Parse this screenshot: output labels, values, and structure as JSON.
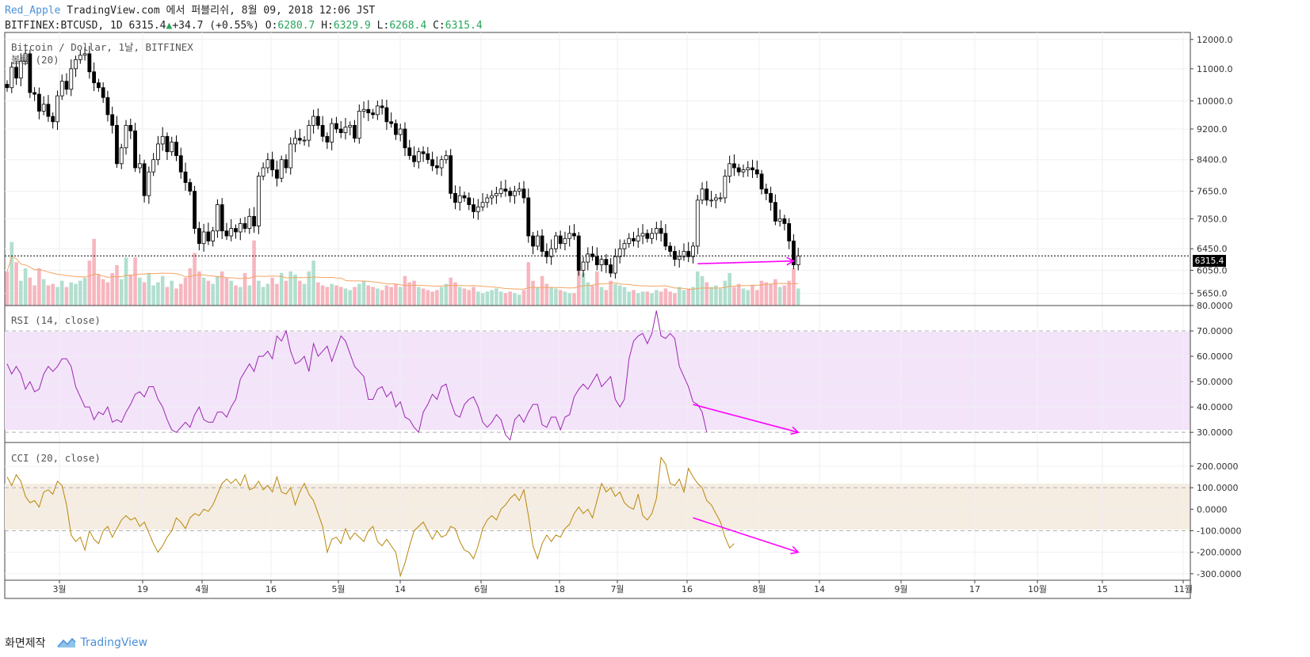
{
  "header": {
    "author": "Red_Apple",
    "published": "TradingView.com 에서 퍼블리쉬, 8월 09, 2018 12:06 JST",
    "symbol": "BITFINEX:BTCUSD, 1D",
    "last": "6315.4",
    "change": "+34.7 (+0.55%)",
    "open_label": "O:",
    "open": "6280.7",
    "high_label": "H:",
    "high": "6329.9",
    "low_label": "L:",
    "low": "6268.4",
    "close_label": "C:",
    "close": "6315.4"
  },
  "panes": {
    "price_title": "Bitcoin / Dollar, 1날, BITFINEX",
    "volume_title": "볼륨 (20)",
    "rsi_title": "RSI (14, close)",
    "cci_title": "CCI (20, close)"
  },
  "price_label": "6315.4",
  "footer": {
    "made_with": "화면제작",
    "brand": "TradingView"
  },
  "colors": {
    "up": "#26a69a",
    "down": "#000000",
    "rsi": "#9c27b0",
    "cci": "#b8860b",
    "arrow": "#ff00ff",
    "vol_up": "#b2dfcf",
    "vol_down": "#f7b6bf",
    "vol_ma": "#f4a460"
  },
  "chart_data": [
    {
      "type": "candlestick",
      "title": "Bitcoin / Dollar, 1날, BITFINEX",
      "ylim": [
        5450,
        12250
      ],
      "y_ticks": [
        "12000.0",
        "11000.0",
        "10000.0",
        "9200.0",
        "8400.0",
        "7650.0",
        "7050.0",
        "6450.0",
        "6050.0",
        "5650.0"
      ],
      "x_ticks": [
        "3월",
        "19",
        "4월",
        "16",
        "5월",
        "14",
        "6월",
        "18",
        "7월",
        "16",
        "8월",
        "14",
        "9월",
        "17",
        "10월",
        "15",
        "11월"
      ],
      "close": [
        10400,
        11050,
        10700,
        11250,
        11500,
        10250,
        10200,
        9700,
        9900,
        9550,
        9400,
        10150,
        10600,
        10350,
        11000,
        11300,
        11450,
        11500,
        10900,
        10550,
        10400,
        10100,
        9600,
        9300,
        8300,
        8700,
        9300,
        9150,
        8200,
        8300,
        7550,
        8100,
        8400,
        8800,
        9000,
        8600,
        8850,
        8500,
        8100,
        7850,
        7650,
        6850,
        6550,
        6780,
        6600,
        6800,
        7350,
        6800,
        6700,
        6850,
        6780,
        6950,
        6850,
        7100,
        6900,
        8000,
        8200,
        8400,
        8150,
        7950,
        8400,
        8200,
        8800,
        8950,
        8900,
        8900,
        9300,
        9550,
        9300,
        9000,
        8850,
        9350,
        9200,
        9100,
        9250,
        9300,
        8950,
        9700,
        9750,
        9650,
        9600,
        9850,
        9800,
        9400,
        9350,
        9050,
        9200,
        8700,
        8500,
        8350,
        8600,
        8550,
        8400,
        8250,
        8200,
        8400,
        8500,
        7600,
        7400,
        7550,
        7500,
        7350,
        7200,
        7300,
        7400,
        7500,
        7550,
        7600,
        7700,
        7650,
        7550,
        7650,
        7700,
        7500,
        6700,
        6500,
        6700,
        6400,
        6300,
        6450,
        6700,
        6550,
        6650,
        6750,
        6700,
        6050,
        6200,
        6350,
        6300,
        6150,
        6250,
        6150,
        6000,
        6300,
        6450,
        6550,
        6650,
        6600,
        6700,
        6750,
        6650,
        6750,
        6850,
        6750,
        6500,
        6400,
        6250,
        6300,
        6400,
        6300,
        6500,
        7450,
        7700,
        7450,
        7450,
        7500,
        7500,
        8000,
        8300,
        8200,
        8100,
        8150,
        8200,
        8150,
        8050,
        7700,
        7600,
        7400,
        7000,
        7050,
        6950,
        6600,
        6150,
        6315.4
      ],
      "volume": [
        22000,
        41000,
        28000,
        16000,
        24000,
        18000,
        13000,
        24000,
        17000,
        13000,
        14000,
        12000,
        16000,
        12000,
        15000,
        14000,
        16000,
        18000,
        29000,
        43000,
        20000,
        17000,
        15000,
        21000,
        26000,
        17000,
        31000,
        20000,
        31000,
        18000,
        15000,
        21000,
        13000,
        15000,
        19000,
        12000,
        16000,
        11000,
        14000,
        18000,
        24000,
        34000,
        22000,
        18000,
        16000,
        14000,
        19000,
        22000,
        18000,
        16000,
        13000,
        12000,
        21000,
        13000,
        42000,
        16000,
        12000,
        14000,
        18000,
        14000,
        21000,
        16000,
        22000,
        20000,
        16000,
        14000,
        22000,
        29000,
        15000,
        13000,
        12000,
        14000,
        13000,
        12000,
        11000,
        10000,
        12000,
        14000,
        16000,
        13000,
        12000,
        11000,
        10000,
        13000,
        12000,
        14000,
        12000,
        19000,
        15000,
        16000,
        12000,
        11000,
        10000,
        9000,
        10000,
        12000,
        14000,
        18000,
        15000,
        12000,
        11000,
        10000,
        12000,
        9000,
        8000,
        9000,
        10000,
        11000,
        9000,
        8000,
        9000,
        8000,
        7000,
        10000,
        28000,
        16000,
        12000,
        19000,
        14000,
        12000,
        11000,
        10000,
        9000,
        8000,
        8000,
        24000,
        21000,
        15000,
        13000,
        22000,
        12000,
        10000,
        16000,
        14000,
        13000,
        12000,
        9000,
        10000,
        8000,
        9000,
        9000,
        8000,
        10000,
        9000,
        11000,
        9000,
        8000,
        12000,
        10000,
        11000,
        12000,
        22000,
        19000,
        15000,
        12000,
        13000,
        11000,
        16000,
        21000,
        12000,
        14000,
        11000,
        10000,
        13000,
        10000,
        16000,
        15000,
        14000,
        17000,
        12000,
        13000,
        16000,
        24000,
        11000
      ],
      "annotation": {
        "type": "arrow",
        "from": [
          151,
          6170
        ],
        "to": [
          172,
          6220
        ]
      }
    },
    {
      "type": "line",
      "title": "RSI (14, close)",
      "ylim": [
        26,
        80
      ],
      "y_ticks": [
        "80.0000",
        "70.0000",
        "60.0000",
        "50.0000",
        "40.0000",
        "30.0000"
      ],
      "band": [
        30,
        70
      ],
      "values": [
        57,
        53,
        56,
        53,
        47,
        50,
        46,
        47,
        53,
        56,
        54,
        56,
        59,
        59,
        56,
        48,
        44,
        40,
        40,
        35,
        38,
        37,
        40,
        34,
        35,
        34,
        38,
        41,
        45,
        46,
        44,
        48,
        48,
        43,
        40,
        35,
        31,
        30,
        32,
        34,
        32,
        37,
        40,
        35,
        34,
        34,
        38,
        38,
        36,
        40,
        43,
        51,
        54,
        57,
        54,
        60,
        60,
        62,
        59,
        68,
        66,
        70,
        62,
        57,
        58,
        60,
        54,
        65,
        60,
        62,
        64,
        58,
        63,
        68,
        66,
        61,
        56,
        54,
        52,
        43,
        43,
        47,
        48,
        44,
        46,
        40,
        42,
        36,
        35,
        32,
        30,
        38,
        41,
        45,
        43,
        48,
        49,
        42,
        37,
        36,
        41,
        43,
        44,
        40,
        34,
        32,
        34,
        37,
        35,
        29,
        27,
        35,
        37,
        34,
        38,
        41,
        41,
        33,
        32,
        36,
        36,
        31,
        36,
        37,
        44,
        47,
        49,
        47,
        50,
        53,
        48,
        50,
        52,
        43,
        40,
        43,
        59,
        66,
        68,
        69,
        65,
        69,
        78,
        68,
        67,
        69,
        67,
        56,
        52,
        48,
        42,
        41,
        38,
        30
      ],
      "annotation": {
        "type": "arrow",
        "from": [
          150,
          41
        ],
        "to": [
          173,
          30
        ]
      }
    },
    {
      "type": "line",
      "title": "CCI (20, close)",
      "ylim": [
        -330,
        310
      ],
      "y_ticks": [
        "200.0000",
        "100.0000",
        "0.0000",
        "-100.0000",
        "-200.0000",
        "-300.0000"
      ],
      "band": [
        -100,
        100
      ],
      "values": [
        150,
        110,
        160,
        130,
        60,
        30,
        40,
        10,
        80,
        90,
        70,
        130,
        110,
        20,
        -120,
        -150,
        -130,
        -190,
        -100,
        -140,
        -160,
        -100,
        -80,
        -130,
        -90,
        -50,
        -30,
        -50,
        -40,
        -80,
        -60,
        -110,
        -160,
        -200,
        -170,
        -130,
        -100,
        -40,
        -60,
        -90,
        -40,
        -20,
        -30,
        0,
        -10,
        20,
        70,
        120,
        140,
        120,
        140,
        110,
        160,
        90,
        100,
        130,
        90,
        110,
        80,
        150,
        80,
        70,
        100,
        20,
        80,
        120,
        70,
        40,
        -20,
        -80,
        -200,
        -140,
        -130,
        -160,
        -90,
        -140,
        -110,
        -130,
        -150,
        -100,
        -80,
        -150,
        -170,
        -140,
        -170,
        -200,
        -310,
        -250,
        -170,
        -100,
        -80,
        -60,
        -100,
        -140,
        -100,
        -130,
        -120,
        -80,
        -90,
        -150,
        -190,
        -200,
        -230,
        -170,
        -90,
        -50,
        -30,
        -50,
        0,
        20,
        50,
        70,
        40,
        90,
        -30,
        -170,
        -230,
        -160,
        -120,
        -150,
        -120,
        -130,
        -90,
        -70,
        -20,
        10,
        -20,
        0,
        -40,
        40,
        120,
        80,
        100,
        60,
        80,
        30,
        10,
        0,
        70,
        -30,
        -50,
        -20,
        50,
        240,
        210,
        120,
        110,
        140,
        80,
        190,
        150,
        120,
        100,
        40,
        20,
        -20,
        -60,
        -130,
        -180,
        -160
      ],
      "annotation": {
        "type": "arrow",
        "from": [
          150,
          -40
        ],
        "to": [
          173,
          -200
        ]
      }
    }
  ]
}
